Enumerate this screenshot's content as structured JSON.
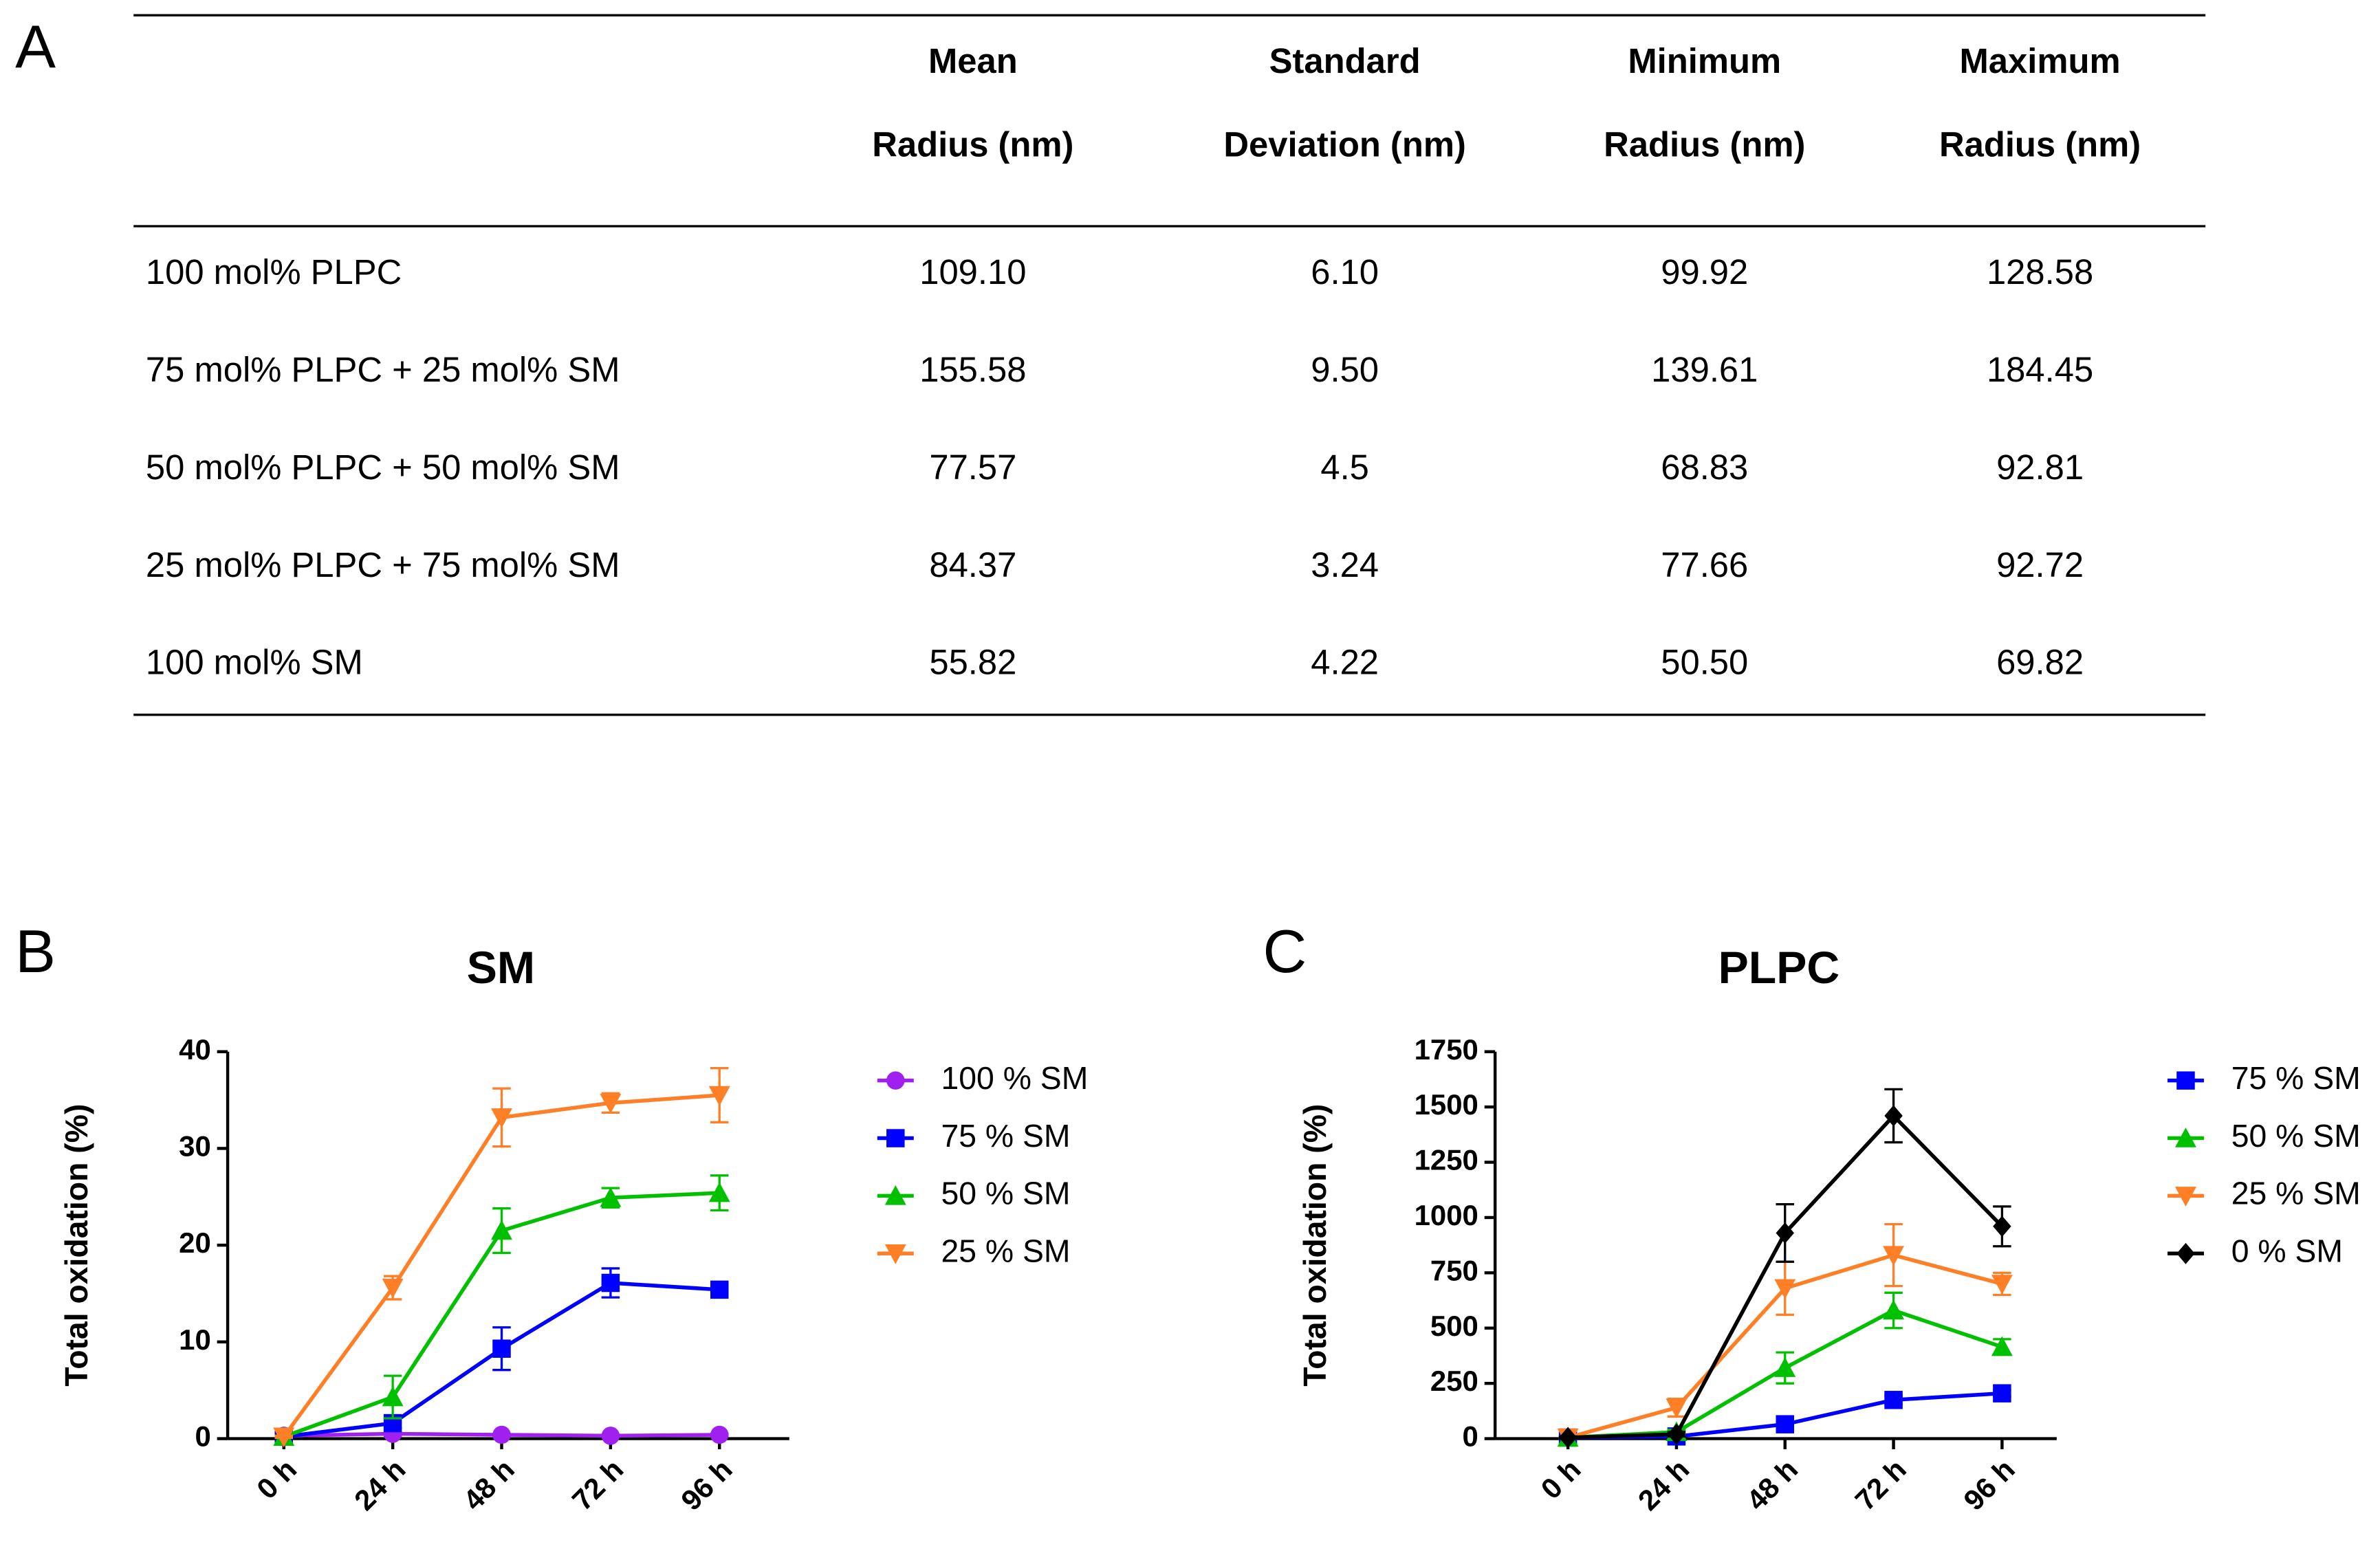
{
  "panel_labels": [
    "A",
    "B",
    "C"
  ],
  "table": {
    "columns": [
      [
        "Mean",
        "Radius (nm)"
      ],
      [
        "Standard",
        "Deviation (nm)"
      ],
      [
        "Minimum",
        "Radius (nm)"
      ],
      [
        "Maximum",
        "Radius (nm)"
      ]
    ],
    "rows": [
      [
        "100 mol% PLPC",
        "109.10",
        "6.10",
        "99.92",
        "128.58"
      ],
      [
        "75 mol% PLPC + 25 mol% SM",
        "155.58",
        "9.50",
        "139.61",
        "184.45"
      ],
      [
        "50 mol% PLPC + 50 mol% SM",
        "77.57",
        "4.5",
        "68.83",
        "92.81"
      ],
      [
        "25 mol% PLPC + 75 mol% SM",
        "84.37",
        "3.24",
        "77.66",
        "92.72"
      ],
      [
        "100 mol% SM",
        "55.82",
        "4.22",
        "50.50",
        "69.82"
      ]
    ]
  },
  "chart_data": [
    {
      "type": "line",
      "title": "SM",
      "y_label": "Total oxidation (%)",
      "categories": [
        "0 h",
        "24 h",
        "48 h",
        "72 h",
        "96 h"
      ],
      "ylim": [
        0,
        40
      ],
      "yticks": [
        0,
        10,
        20,
        30,
        40
      ],
      "legend": "right",
      "series": [
        {
          "name": "100 % SM",
          "color": "#a020f0",
          "marker": "circle",
          "values": [
            0.3,
            0.5,
            0.4,
            0.3,
            0.4
          ],
          "errors": [
            0.1,
            0.2,
            0.1,
            0.1,
            0.1
          ]
        },
        {
          "name": "75 % SM",
          "color": "#0000ff",
          "marker": "square",
          "values": [
            0.2,
            1.6,
            9.3,
            16.1,
            15.4
          ],
          "errors": [
            0.1,
            0.5,
            2.2,
            1.5,
            0.6
          ]
        },
        {
          "name": "50 % SM",
          "color": "#00c000",
          "marker": "triangle-up",
          "values": [
            0.2,
            4.3,
            21.5,
            24.9,
            25.4
          ],
          "errors": [
            0.1,
            2.2,
            2.3,
            1.0,
            1.8
          ]
        },
        {
          "name": "25 % SM",
          "color": "#ff7f27",
          "marker": "triangle-down",
          "values": [
            0.2,
            15.6,
            33.2,
            34.7,
            35.5
          ],
          "errors": [
            0.1,
            1.2,
            3.0,
            1.0,
            2.8
          ]
        }
      ]
    },
    {
      "type": "line",
      "title": "PLPC",
      "y_label": "Total oxidation (%)",
      "categories": [
        "0 h",
        "24 h",
        "48 h",
        "72 h",
        "96 h"
      ],
      "ylim": [
        0,
        1750
      ],
      "yticks": [
        0,
        250,
        500,
        750,
        1000,
        1250,
        1500,
        1750
      ],
      "legend": "right",
      "series": [
        {
          "name": "75 % SM",
          "color": "#0000ff",
          "marker": "square",
          "values": [
            5,
            10,
            65,
            175,
            205
          ],
          "errors": [
            5,
            5,
            10,
            20,
            15
          ]
        },
        {
          "name": "50 % SM",
          "color": "#00c000",
          "marker": "triangle-up",
          "values": [
            5,
            30,
            320,
            580,
            415
          ],
          "errors": [
            5,
            10,
            70,
            80,
            35
          ]
        },
        {
          "name": "25 % SM",
          "color": "#ff7f27",
          "marker": "triangle-down",
          "values": [
            5,
            140,
            680,
            830,
            700
          ],
          "errors": [
            5,
            40,
            120,
            140,
            50
          ]
        },
        {
          "name": "0 % SM",
          "color": "#000000",
          "marker": "diamond",
          "values": [
            5,
            20,
            930,
            1460,
            960
          ],
          "errors": [
            5,
            10,
            130,
            120,
            90
          ]
        }
      ]
    }
  ]
}
